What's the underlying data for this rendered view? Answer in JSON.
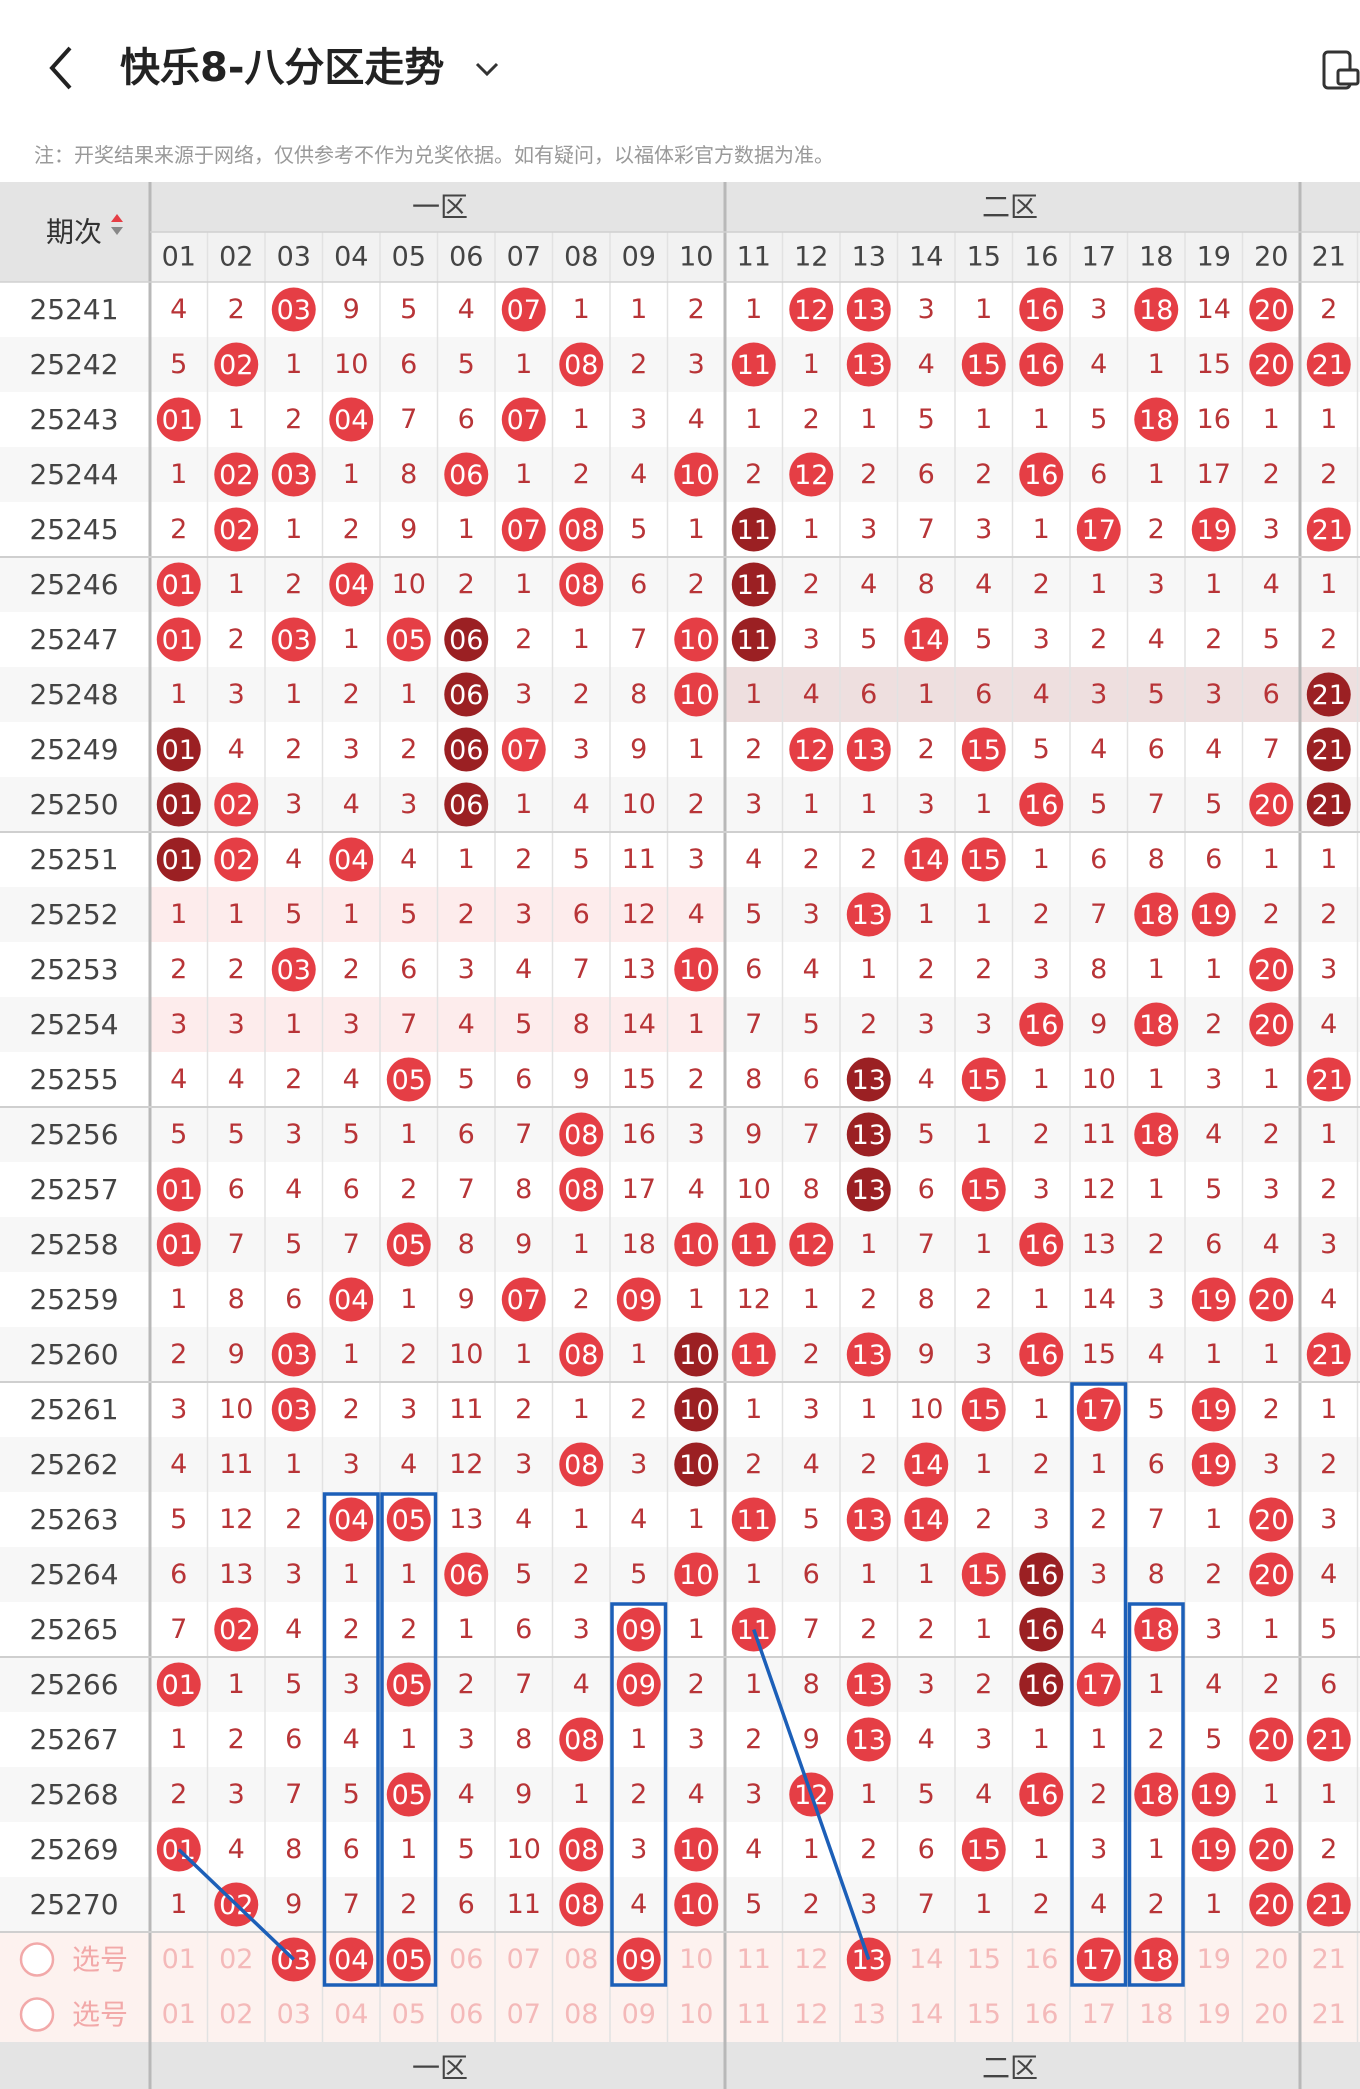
{
  "header": {
    "title": "快乐8-八分区走势",
    "back_icon": "chevron-left-icon",
    "dropdown_icon": "chevron-down-icon",
    "device_icon": "device-icon"
  },
  "notice": "注：开奖结果来源于网络，仅供参考不作为兑奖依据。如有疑问，以福体彩官方数据为准。",
  "table": {
    "period_header": "期次",
    "sort_icon": "sort-icon",
    "zones": [
      "一区",
      "二区"
    ],
    "columns": [
      "01",
      "02",
      "03",
      "04",
      "05",
      "06",
      "07",
      "08",
      "09",
      "10",
      "11",
      "12",
      "13",
      "14",
      "15",
      "16",
      "17",
      "18",
      "19",
      "20",
      "21"
    ],
    "select_label": "选号",
    "select_rows": 2,
    "selected_in_row1": [
      "03",
      "04",
      "05",
      "09",
      "13",
      "17",
      "18"
    ],
    "rows": [
      {
        "period": "25241",
        "cells": [
          "4",
          "2",
          "03",
          "9",
          "5",
          "4",
          "07",
          "1",
          "1",
          "2",
          "1",
          "12",
          "13",
          "3",
          "1",
          "16",
          "3",
          "18",
          "14",
          "20",
          "2"
        ]
      },
      {
        "period": "25242",
        "cells": [
          "5",
          "02",
          "1",
          "10",
          "6",
          "5",
          "1",
          "08",
          "2",
          "3",
          "11",
          "1",
          "13",
          "4",
          "15",
          "16",
          "4",
          "1",
          "15",
          "20",
          "21"
        ]
      },
      {
        "period": "25243",
        "cells": [
          "01",
          "1",
          "2",
          "04",
          "7",
          "6",
          "07",
          "1",
          "3",
          "4",
          "1",
          "2",
          "1",
          "5",
          "1",
          "1",
          "5",
          "18",
          "16",
          "1",
          "1"
        ]
      },
      {
        "period": "25244",
        "cells": [
          "1",
          "02",
          "03",
          "1",
          "8",
          "06",
          "1",
          "2",
          "4",
          "10",
          "2",
          "12",
          "2",
          "6",
          "2",
          "16",
          "6",
          "1",
          "17",
          "2",
          "2"
        ]
      },
      {
        "period": "25245",
        "cells": [
          "2",
          "02",
          "1",
          "2",
          "9",
          "1",
          "07",
          "08",
          "5",
          "1",
          "11",
          "1",
          "3",
          "7",
          "3",
          "1",
          "17",
          "2",
          "19",
          "3",
          "21"
        ]
      },
      {
        "period": "25246",
        "cells": [
          "01",
          "1",
          "2",
          "04",
          "10",
          "2",
          "1",
          "08",
          "6",
          "2",
          "11",
          "2",
          "4",
          "8",
          "4",
          "2",
          "1",
          "3",
          "1",
          "4",
          "1"
        ]
      },
      {
        "period": "25247",
        "cells": [
          "01",
          "2",
          "03",
          "1",
          "05",
          "06",
          "2",
          "1",
          "7",
          "10",
          "11",
          "3",
          "5",
          "14",
          "5",
          "3",
          "2",
          "4",
          "2",
          "5",
          "2"
        ]
      },
      {
        "period": "25248",
        "cells": [
          "1",
          "3",
          "1",
          "2",
          "1",
          "06",
          "3",
          "2",
          "8",
          "10",
          "1",
          "4",
          "6",
          "1",
          "6",
          "4",
          "3",
          "5",
          "3",
          "6",
          "21"
        ]
      },
      {
        "period": "25249",
        "cells": [
          "01",
          "4",
          "2",
          "3",
          "2",
          "06",
          "07",
          "3",
          "9",
          "1",
          "2",
          "12",
          "13",
          "2",
          "15",
          "5",
          "4",
          "6",
          "4",
          "7",
          "21"
        ]
      },
      {
        "period": "25250",
        "cells": [
          "01",
          "02",
          "3",
          "4",
          "3",
          "06",
          "1",
          "4",
          "10",
          "2",
          "3",
          "1",
          "1",
          "3",
          "1",
          "16",
          "5",
          "7",
          "5",
          "20",
          "21"
        ]
      },
      {
        "period": "25251",
        "cells": [
          "01",
          "02",
          "4",
          "04",
          "4",
          "1",
          "2",
          "5",
          "11",
          "3",
          "4",
          "2",
          "2",
          "14",
          "15",
          "1",
          "6",
          "8",
          "6",
          "1",
          "1"
        ]
      },
      {
        "period": "25252",
        "cells": [
          "1",
          "1",
          "5",
          "1",
          "5",
          "2",
          "3",
          "6",
          "12",
          "4",
          "5",
          "3",
          "13",
          "1",
          "1",
          "2",
          "7",
          "18",
          "19",
          "2",
          "2"
        ]
      },
      {
        "period": "25253",
        "cells": [
          "2",
          "2",
          "03",
          "2",
          "6",
          "3",
          "4",
          "7",
          "13",
          "10",
          "6",
          "4",
          "1",
          "2",
          "2",
          "3",
          "8",
          "1",
          "1",
          "20",
          "3"
        ]
      },
      {
        "period": "25254",
        "cells": [
          "3",
          "3",
          "1",
          "3",
          "7",
          "4",
          "5",
          "8",
          "14",
          "1",
          "7",
          "5",
          "2",
          "3",
          "3",
          "16",
          "9",
          "18",
          "2",
          "20",
          "4"
        ]
      },
      {
        "period": "25255",
        "cells": [
          "4",
          "4",
          "2",
          "4",
          "05",
          "5",
          "6",
          "9",
          "15",
          "2",
          "8",
          "6",
          "13",
          "4",
          "15",
          "1",
          "10",
          "1",
          "3",
          "1",
          "21"
        ]
      },
      {
        "period": "25256",
        "cells": [
          "5",
          "5",
          "3",
          "5",
          "1",
          "6",
          "7",
          "08",
          "16",
          "3",
          "9",
          "7",
          "13",
          "5",
          "1",
          "2",
          "11",
          "18",
          "4",
          "2",
          "1"
        ]
      },
      {
        "period": "25257",
        "cells": [
          "01",
          "6",
          "4",
          "6",
          "2",
          "7",
          "8",
          "08",
          "17",
          "4",
          "10",
          "8",
          "13",
          "6",
          "15",
          "3",
          "12",
          "1",
          "5",
          "3",
          "2"
        ]
      },
      {
        "period": "25258",
        "cells": [
          "01",
          "7",
          "5",
          "7",
          "05",
          "8",
          "9",
          "1",
          "18",
          "10",
          "11",
          "12",
          "1",
          "7",
          "1",
          "16",
          "13",
          "2",
          "6",
          "4",
          "3"
        ]
      },
      {
        "period": "25259",
        "cells": [
          "1",
          "8",
          "6",
          "04",
          "1",
          "9",
          "07",
          "2",
          "09",
          "1",
          "12",
          "1",
          "2",
          "8",
          "2",
          "1",
          "14",
          "3",
          "19",
          "20",
          "4"
        ]
      },
      {
        "period": "25260",
        "cells": [
          "2",
          "9",
          "03",
          "1",
          "2",
          "10",
          "1",
          "08",
          "1",
          "10",
          "11",
          "2",
          "13",
          "9",
          "3",
          "16",
          "15",
          "4",
          "1",
          "1",
          "21"
        ]
      },
      {
        "period": "25261",
        "cells": [
          "3",
          "10",
          "03",
          "2",
          "3",
          "11",
          "2",
          "1",
          "2",
          "10",
          "1",
          "3",
          "1",
          "10",
          "15",
          "1",
          "17",
          "5",
          "19",
          "2",
          "1"
        ]
      },
      {
        "period": "25262",
        "cells": [
          "4",
          "11",
          "1",
          "3",
          "4",
          "12",
          "3",
          "08",
          "3",
          "10",
          "2",
          "4",
          "2",
          "14",
          "1",
          "2",
          "1",
          "6",
          "19",
          "3",
          "2"
        ]
      },
      {
        "period": "25263",
        "cells": [
          "5",
          "12",
          "2",
          "04",
          "05",
          "13",
          "4",
          "1",
          "4",
          "1",
          "11",
          "5",
          "13",
          "14",
          "2",
          "3",
          "2",
          "7",
          "1",
          "20",
          "3"
        ]
      },
      {
        "period": "25264",
        "cells": [
          "6",
          "13",
          "3",
          "1",
          "1",
          "06",
          "5",
          "2",
          "5",
          "10",
          "1",
          "6",
          "1",
          "1",
          "15",
          "16",
          "3",
          "8",
          "2",
          "20",
          "4"
        ]
      },
      {
        "period": "25265",
        "cells": [
          "7",
          "02",
          "4",
          "2",
          "2",
          "1",
          "6",
          "3",
          "09",
          "1",
          "11",
          "7",
          "2",
          "2",
          "1",
          "16",
          "4",
          "18",
          "3",
          "1",
          "5"
        ]
      },
      {
        "period": "25266",
        "cells": [
          "01",
          "1",
          "5",
          "3",
          "05",
          "2",
          "7",
          "4",
          "09",
          "2",
          "1",
          "8",
          "13",
          "3",
          "2",
          "16",
          "17",
          "1",
          "4",
          "2",
          "6"
        ]
      },
      {
        "period": "25267",
        "cells": [
          "1",
          "2",
          "6",
          "4",
          "1",
          "3",
          "8",
          "08",
          "1",
          "3",
          "2",
          "9",
          "13",
          "4",
          "3",
          "1",
          "1",
          "2",
          "5",
          "20",
          "21"
        ]
      },
      {
        "period": "25268",
        "cells": [
          "2",
          "3",
          "7",
          "5",
          "05",
          "4",
          "9",
          "1",
          "2",
          "4",
          "3",
          "12",
          "1",
          "5",
          "4",
          "16",
          "2",
          "18",
          "19",
          "1",
          "1"
        ]
      },
      {
        "period": "25269",
        "cells": [
          "01",
          "4",
          "8",
          "6",
          "1",
          "5",
          "10",
          "08",
          "3",
          "10",
          "4",
          "1",
          "2",
          "6",
          "15",
          "1",
          "3",
          "1",
          "19",
          "20",
          "2"
        ]
      },
      {
        "period": "25270",
        "cells": [
          "1",
          "02",
          "9",
          "7",
          "2",
          "6",
          "11",
          "08",
          "4",
          "10",
          "5",
          "2",
          "3",
          "7",
          "1",
          "2",
          "4",
          "2",
          "1",
          "20",
          "21"
        ]
      }
    ],
    "dark_balls": [
      [
        "25247",
        "06"
      ],
      [
        "25248",
        "06"
      ],
      [
        "25249",
        "06"
      ],
      [
        "25250",
        "06"
      ],
      [
        "25249",
        "01"
      ],
      [
        "25250",
        "01"
      ],
      [
        "25251",
        "01"
      ],
      [
        "25245",
        "11"
      ],
      [
        "25246",
        "11"
      ],
      [
        "25247",
        "11"
      ],
      [
        "25248",
        "21"
      ],
      [
        "25249",
        "21"
      ],
      [
        "25250",
        "21"
      ],
      [
        "25255",
        "13"
      ],
      [
        "25256",
        "13"
      ],
      [
        "25257",
        "13"
      ],
      [
        "25260",
        "10"
      ],
      [
        "25261",
        "10"
      ],
      [
        "25262",
        "10"
      ],
      [
        "25264",
        "16"
      ],
      [
        "25265",
        "16"
      ],
      [
        "25266",
        "16"
      ]
    ],
    "highlight_rows": [
      "25248"
    ],
    "pink_left_rows": [
      "25252",
      "25254"
    ],
    "colors": {
      "ball_red": "#e53e45",
      "ball_dark": "#9b2023",
      "miss_text": "#b83437",
      "annotation_blue": "#1c5fb8",
      "select_text": "#f4b9b9",
      "header_bg": "#e4e4e4"
    }
  }
}
